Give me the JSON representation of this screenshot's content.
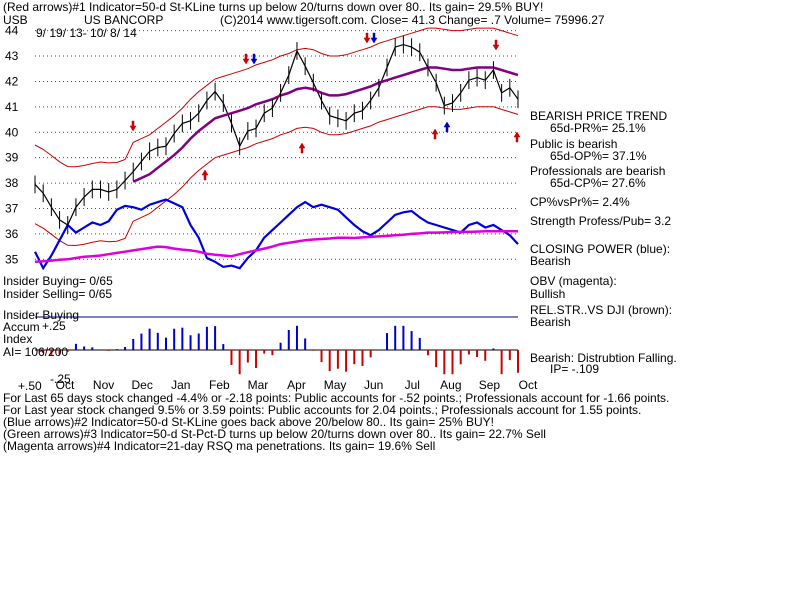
{
  "header": {
    "line1": "(Red arrows)#1 Indicator=50-d St-KLine turns up below 20/turns down over 80.. Its gain= 29.5% BUY!",
    "ticker": "USB",
    "company": "US BANCORP",
    "info": "(C)2014 www.tigersoft.com.   Close=  41.3  Change= .7 Volume= 75996.27",
    "date_range": "9/ 19/ 13- 10/ 8/ 14"
  },
  "right_panel": {
    "l1": "BEARISH PRICE TREND",
    "l2": "65d-PR%= 25.1%",
    "l3": "Public is bearish",
    "l4": "65d-OP%= 37.1%",
    "l5": "Professionals are bearish",
    "l6": "65d-CP%= 27.6%",
    "l7": "CP%vsPr%=  2.4%",
    "l8": "Strength Profess/Pub= 3.2",
    "l9": "CLOSING POWER (blue):",
    "l10": "Bearish",
    "l11": "OBV (magenta):",
    "l12": "Bullish",
    "l13": "REL.STR..VS DJI (brown):",
    "l14": "Bearish",
    "l15": "Bearish: Distrubtion Falling.",
    "l16": "IP= -.109"
  },
  "left_panel": {
    "insider_buying": "Insider Buying= 0/65",
    "insider_selling": "Insider Selling= 0/65",
    "accum_title1": "Insider Buying",
    "accum_title2": "Accum",
    "accum_title3": "Index",
    "ai": "AI= 106/200",
    "tick_p25": "+.25",
    "tick_p50": "+.50",
    "tick_m25": "-.25"
  },
  "footer": {
    "f1": "For Last 65 days stock changed -4.4% or -2.18 points:  Public accounts for -.52 points.;  Professionals account for -1.66 points.",
    "f2": "For Last year stock changed  9.5% or  3.59 points:  Public accounts for  2.04 points.;  Professionals account for  1.55 points.",
    "f3": "(Blue arrows)#2 Indicator=50-d St-KLine goes back above 20/below 80.. Its gain= 25% BUY!",
    "f4": "(Green arrows)#3 Indicator=50-d St-Pct-D turns up below 20/turns down over 80.. Its gain= 22.7% Sell",
    "f5": "(Magenta arrows)#4 Indicator=21-day RSQ ma penetrations. Its gain= 19.6% Sell"
  },
  "colors": {
    "price": "#000000",
    "bands": "#cc0000",
    "ma": "#800080",
    "closing_power": "#0000dd",
    "obv": "#dd00dd",
    "accum_pos": "#0000cc",
    "accum_neg": "#cc0000",
    "grid": "#008000"
  },
  "chart_data": {
    "type": "line",
    "price_axis": {
      "ticks": [
        35,
        36,
        37,
        38,
        39,
        40,
        41,
        42,
        43,
        44
      ],
      "range": [
        34.5,
        44.3
      ]
    },
    "months": [
      "Oct",
      "Nov",
      "Dec",
      "Jan",
      "Feb",
      "Mar",
      "Apr",
      "May",
      "Jun",
      "Jul",
      "Aug",
      "Sep",
      "Oct"
    ],
    "series": [
      {
        "key": "close",
        "values": [
          37.95,
          37.6,
          37.05,
          36.55,
          36.35,
          37.05,
          37.45,
          37.75,
          37.75,
          37.65,
          37.75,
          38.1,
          38.45,
          38.85,
          39.25,
          39.4,
          39.45,
          39.95,
          40.35,
          40.45,
          40.75,
          41.25,
          41.6,
          41.15,
          40.35,
          39.45,
          40.05,
          40.15,
          40.75,
          40.95,
          41.55,
          42.25,
          43.2,
          42.6,
          41.95,
          41.25,
          40.65,
          40.55,
          40.45,
          40.75,
          40.85,
          41.25,
          41.75,
          42.55,
          43.35,
          43.45,
          43.35,
          43.15,
          42.55,
          41.95,
          41.05,
          41.15,
          41.55,
          42.05,
          42.15,
          42.05,
          42.45,
          41.55,
          41.75,
          41.3
        ]
      },
      {
        "key": "ma",
        "values": [
          null,
          null,
          null,
          null,
          null,
          null,
          null,
          null,
          null,
          null,
          null,
          null,
          38.05,
          38.2,
          38.35,
          38.6,
          38.85,
          39.1,
          39.4,
          39.75,
          40.05,
          40.3,
          40.55,
          40.65,
          40.75,
          40.85,
          40.95,
          41.1,
          41.2,
          41.3,
          41.45,
          41.55,
          41.7,
          41.75,
          41.7,
          41.55,
          41.45,
          41.45,
          41.5,
          41.6,
          41.7,
          41.8,
          41.95,
          42.05,
          42.15,
          42.25,
          42.35,
          42.45,
          42.55,
          42.55,
          42.5,
          42.45,
          42.45,
          42.5,
          42.55,
          42.55,
          42.55,
          42.45,
          42.35,
          42.25
        ]
      },
      {
        "key": "closing_power",
        "values": [
          35.3,
          34.65,
          35.15,
          35.75,
          36.35,
          36.05,
          36.25,
          36.45,
          36.35,
          36.5,
          36.95,
          37.1,
          37.05,
          36.95,
          37.15,
          37.25,
          37.35,
          37.2,
          37.05,
          36.35,
          35.85,
          35.05,
          34.9,
          34.7,
          34.75,
          34.65,
          35.05,
          35.35,
          35.85,
          36.15,
          36.45,
          36.75,
          37.05,
          37.25,
          37.05,
          37.15,
          37.05,
          36.95,
          36.65,
          36.35,
          36.1,
          35.95,
          36.15,
          36.45,
          36.75,
          36.85,
          36.9,
          36.65,
          36.45,
          36.35,
          36.25,
          36.15,
          36.05,
          36.35,
          36.45,
          36.25,
          36.35,
          36.15,
          35.95,
          35.6
        ]
      },
      {
        "key": "obv",
        "values": [
          34.9,
          34.92,
          34.95,
          34.98,
          35.0,
          35.05,
          35.1,
          35.12,
          35.15,
          35.2,
          35.25,
          35.3,
          35.35,
          35.4,
          35.45,
          35.5,
          35.48,
          35.42,
          35.38,
          35.35,
          35.3,
          35.22,
          35.18,
          35.15,
          35.12,
          35.2,
          35.28,
          35.35,
          35.42,
          35.5,
          35.6,
          35.65,
          35.7,
          35.75,
          35.78,
          35.8,
          35.82,
          35.85,
          35.85,
          35.84,
          35.86,
          35.88,
          35.9,
          35.92,
          35.95,
          35.97,
          36.0,
          36.02,
          36.05,
          36.05,
          36.06,
          36.07,
          36.08,
          36.08,
          36.09,
          36.1,
          36.1,
          36.1,
          36.1,
          36.1
        ]
      }
    ]
  }
}
